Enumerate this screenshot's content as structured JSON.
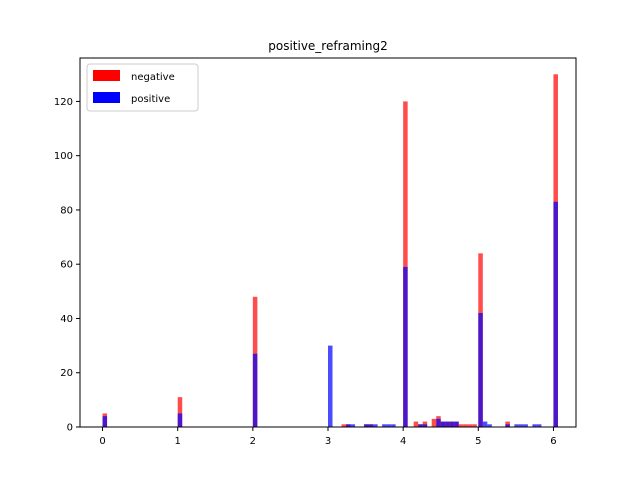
{
  "chart_data": {
    "type": "bar",
    "title": "positive_reframing2",
    "xlabel": "",
    "ylabel": "",
    "xlim": [
      -0.3,
      6.3
    ],
    "ylim": [
      0,
      136
    ],
    "x_ticks": [
      "0",
      "1",
      "2",
      "3",
      "4",
      "5",
      "6"
    ],
    "y_ticks": [
      "0",
      "20",
      "40",
      "60",
      "80",
      "100",
      "120"
    ],
    "bin_width": 0.06,
    "legend": {
      "position": "top-left"
    },
    "series": [
      {
        "name": "negative",
        "color": "#ff0000",
        "alpha": 0.7,
        "x": [
          0,
          1,
          2,
          3.18,
          3.24,
          3.48,
          3.54,
          4,
          4.14,
          4.2,
          4.26,
          4.38,
          4.44,
          4.5,
          4.56,
          4.62,
          4.68,
          4.74,
          4.8,
          4.86,
          4.92,
          5,
          5.36,
          6
        ],
        "values": [
          5,
          11,
          48,
          1,
          1,
          1,
          1,
          120,
          2,
          1,
          2,
          3,
          4,
          2,
          2,
          2,
          2,
          1,
          1,
          1,
          1,
          64,
          2,
          130
        ]
      },
      {
        "name": "positive",
        "color": "#0000ff",
        "alpha": 0.7,
        "x": [
          0,
          1,
          2,
          3,
          3.24,
          3.3,
          3.48,
          3.54,
          3.6,
          3.72,
          3.78,
          3.84,
          4,
          4.2,
          4.26,
          4.44,
          4.5,
          4.56,
          4.62,
          4.68,
          5,
          5.06,
          5.12,
          5.36,
          5.48,
          5.54,
          5.6,
          5.72,
          5.78,
          6
        ],
        "values": [
          4,
          5,
          27,
          30,
          1,
          1,
          1,
          1,
          1,
          1,
          1,
          1,
          59,
          1,
          1,
          3,
          2,
          2,
          2,
          2,
          42,
          2,
          1,
          1,
          1,
          1,
          1,
          1,
          1,
          83
        ]
      }
    ]
  }
}
